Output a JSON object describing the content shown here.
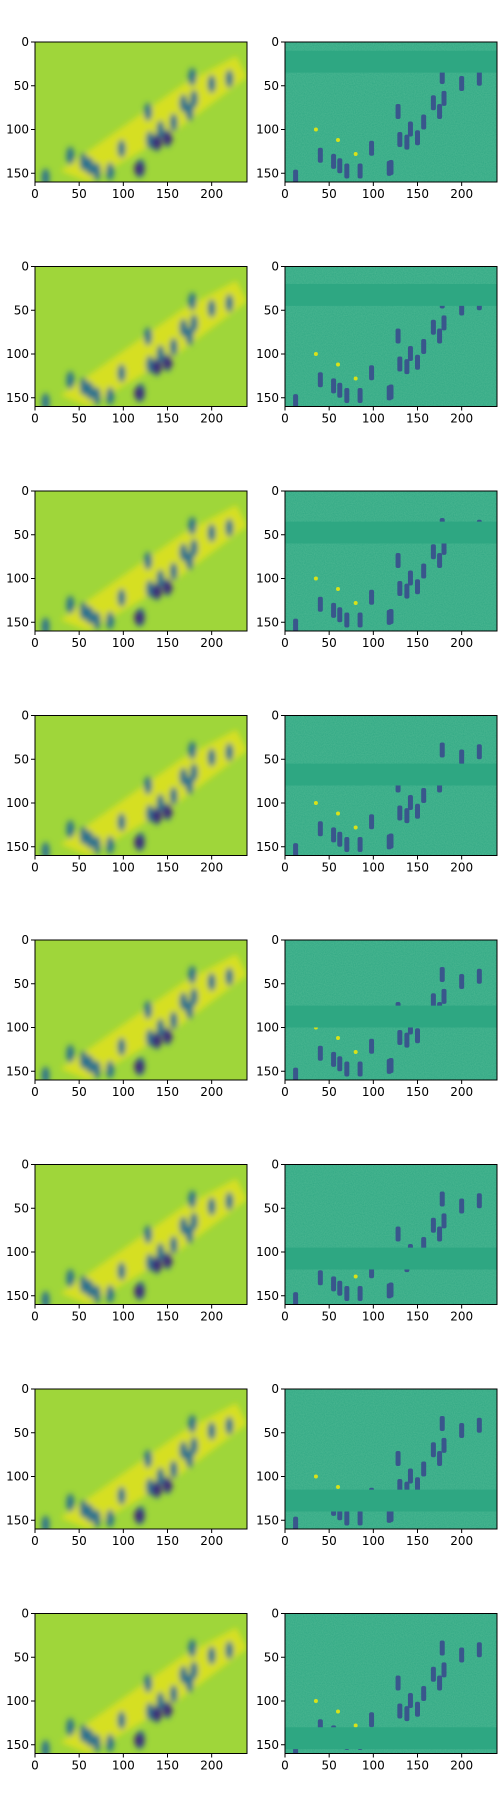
{
  "chart_data": {
    "type": "image-grid",
    "layout": {
      "rows": 8,
      "cols": 2
    },
    "colormap": "viridis",
    "axes_common": {
      "xlim": [
        0,
        240
      ],
      "ylim": [
        160,
        0
      ],
      "x_ticks": [
        0,
        50,
        100,
        150,
        200
      ],
      "y_ticks": [
        0,
        50,
        100,
        150
      ],
      "x_tick_labels": [
        "0",
        "50",
        "100",
        "150",
        "200"
      ],
      "y_tick_labels": [
        "0",
        "50",
        "100",
        "150"
      ]
    },
    "left_column": {
      "description": "blurred yellow-green heat map of crowd of walkers on slope",
      "panels": 8
    },
    "right_column": {
      "description": "teal edge-style map with a uniform horizontal band that moves down each row",
      "band_y_ranges": [
        [
          10,
          35
        ],
        [
          20,
          45
        ],
        [
          35,
          60
        ],
        [
          55,
          80
        ],
        [
          75,
          100
        ],
        [
          95,
          120
        ],
        [
          115,
          140
        ],
        [
          130,
          155
        ]
      ],
      "panels": 8
    }
  },
  "colors": {
    "left_background": "#9fd63a",
    "left_highlight": "#e8e21a",
    "left_dark": "#2c728e",
    "left_darkest": "#3b2a7a",
    "right_background": "#30a884",
    "right_band": "#2ea782",
    "right_dark": "#39568c",
    "right_highlight": "#d8e219"
  }
}
